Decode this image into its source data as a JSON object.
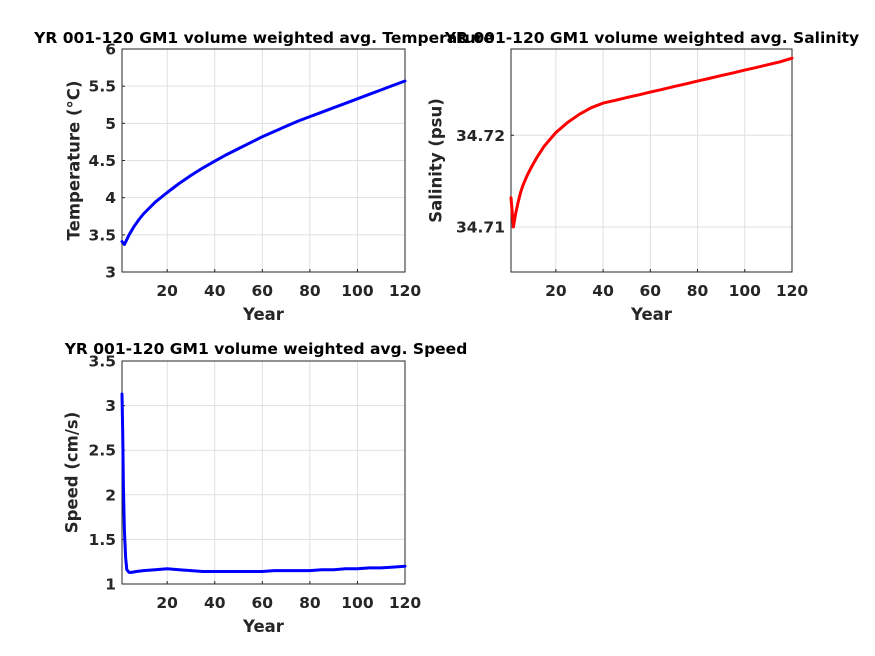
{
  "chart_data": [
    {
      "type": "line",
      "title": "YR 001-120 GM1 volume weighted avg. Temperature",
      "xlabel": "Year",
      "ylabel": "Temperature (°C)",
      "xlim": [
        1,
        120
      ],
      "ylim": [
        3,
        6
      ],
      "xticks": [
        "20",
        "40",
        "60",
        "80",
        "100",
        "120"
      ],
      "yticks": [
        "3",
        "3.5",
        "4",
        "4.5",
        "5",
        "5.5",
        "6"
      ],
      "grid": true,
      "series": [
        {
          "color": "#0000ff",
          "x": [
            1,
            2,
            4,
            6,
            8,
            10,
            15,
            20,
            25,
            30,
            35,
            40,
            45,
            50,
            55,
            60,
            65,
            70,
            75,
            80,
            85,
            90,
            95,
            100,
            105,
            110,
            115,
            120
          ],
          "y": [
            3.41,
            3.37,
            3.5,
            3.61,
            3.7,
            3.78,
            3.94,
            4.07,
            4.19,
            4.3,
            4.4,
            4.49,
            4.58,
            4.66,
            4.74,
            4.82,
            4.89,
            4.96,
            5.03,
            5.09,
            5.15,
            5.21,
            5.27,
            5.33,
            5.39,
            5.45,
            5.51,
            5.57
          ]
        }
      ]
    },
    {
      "type": "line",
      "title": "YR 001-120 GM1 volume weighted avg. Salinity",
      "xlabel": "Year",
      "ylabel": "Salinity (psu)",
      "xlim": [
        1,
        120
      ],
      "ylim": [
        34.7051,
        34.7294
      ],
      "xticks": [
        "20",
        "40",
        "60",
        "80",
        "100",
        "120"
      ],
      "yticks": [
        "34.71",
        "34.72"
      ],
      "ytick_values": [
        34.71,
        34.72
      ],
      "grid": true,
      "series": [
        {
          "color": "#ff0000",
          "x": [
            1,
            2,
            3,
            4,
            5,
            6,
            8,
            10,
            12,
            15,
            20,
            25,
            30,
            35,
            40,
            45,
            50,
            55,
            60,
            65,
            70,
            75,
            80,
            85,
            90,
            95,
            100,
            105,
            110,
            115,
            120
          ],
          "y": [
            34.7132,
            34.71,
            34.7115,
            34.7127,
            34.7137,
            34.7145,
            34.7157,
            34.7167,
            34.7176,
            34.7188,
            34.7203,
            34.7214,
            34.7223,
            34.723,
            34.7235,
            34.7238,
            34.7241,
            34.7244,
            34.7247,
            34.725,
            34.7253,
            34.7256,
            34.7259,
            34.7262,
            34.7265,
            34.7268,
            34.7271,
            34.7274,
            34.7277,
            34.728,
            34.7284
          ]
        }
      ]
    },
    {
      "type": "line",
      "title": "YR 001-120 GM1 volume weighted avg. Speed",
      "xlabel": "Year",
      "ylabel": "Speed (cm/s)",
      "xlim": [
        1,
        120
      ],
      "ylim": [
        1,
        3.5
      ],
      "xticks": [
        "20",
        "40",
        "60",
        "80",
        "100",
        "120"
      ],
      "yticks": [
        "1",
        "1.5",
        "2",
        "2.5",
        "3",
        "3.5"
      ],
      "grid": true,
      "series": [
        {
          "color": "#0000ff",
          "x": [
            1,
            1.3,
            1.6,
            2,
            2.5,
            3,
            4,
            5,
            7,
            10,
            15,
            20,
            25,
            30,
            35,
            40,
            45,
            50,
            55,
            60,
            65,
            70,
            75,
            80,
            85,
            90,
            95,
            100,
            105,
            110,
            115,
            120
          ],
          "y": [
            3.13,
            2.7,
            2.1,
            1.6,
            1.3,
            1.16,
            1.13,
            1.13,
            1.14,
            1.15,
            1.16,
            1.17,
            1.16,
            1.15,
            1.14,
            1.14,
            1.14,
            1.14,
            1.14,
            1.14,
            1.15,
            1.15,
            1.15,
            1.15,
            1.16,
            1.16,
            1.17,
            1.17,
            1.18,
            1.18,
            1.19,
            1.2
          ]
        }
      ]
    }
  ]
}
